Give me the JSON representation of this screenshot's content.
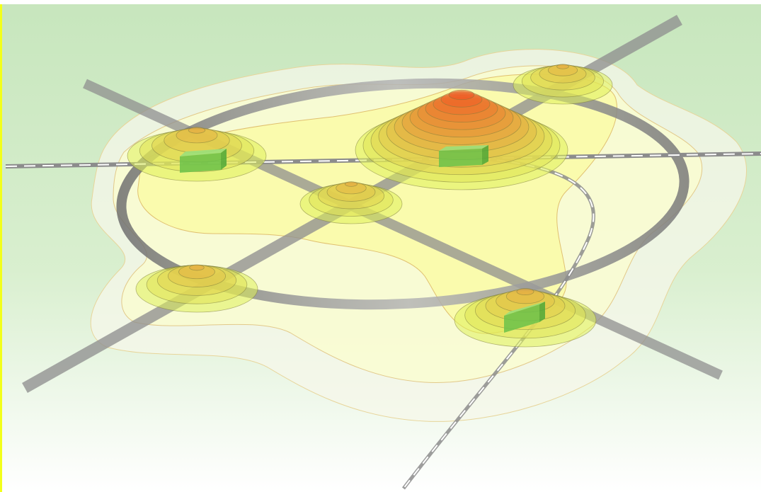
{
  "scene": {
    "background_top": "#c7e6bd",
    "background_bottom": "#ffffff",
    "edge_accent": "#f2ff1a",
    "zone_colors": {
      "outer": "#f6f7e9",
      "mid": "#fafcd0",
      "inner": "#fbfb9d",
      "low": "#dff05a",
      "high": "#ef5522"
    },
    "road_color": "#9a9a9a",
    "rail_color": "#8c8c8c",
    "building_color": "#74c84c"
  },
  "centers": [
    {
      "id": "main",
      "levels": 13
    },
    {
      "id": "west",
      "levels": 6
    },
    {
      "id": "central",
      "levels": 6
    },
    {
      "id": "northeast",
      "levels": 6
    },
    {
      "id": "southwest",
      "levels": 6
    },
    {
      "id": "southeast",
      "levels": 7
    }
  ]
}
